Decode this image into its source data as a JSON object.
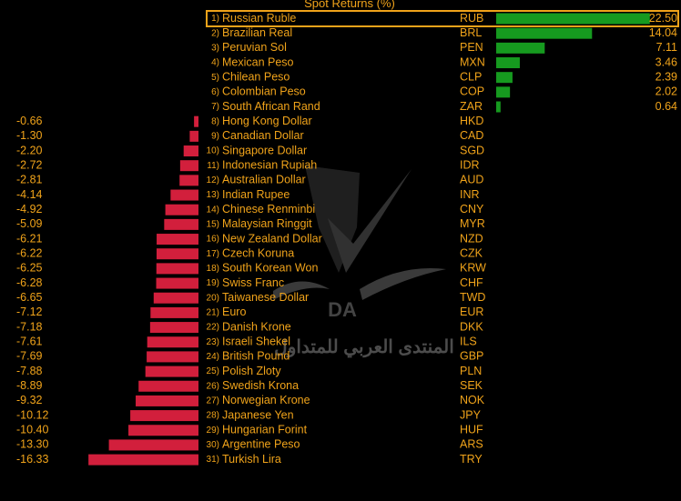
{
  "chart_data": {
    "type": "bar",
    "title": "Spot Returns (%)",
    "highlighted_rank": 1,
    "colors": {
      "background": "#000000",
      "text": "#f0a31a",
      "positive_bar": "#169a1f",
      "negative_bar": "#d21f3c",
      "highlight_border": "#f0a31a"
    },
    "rows": [
      {
        "rank": "1)",
        "name": "Russian Ruble",
        "code": "RUB",
        "value": 22.5
      },
      {
        "rank": "2)",
        "name": "Brazilian Real",
        "code": "BRL",
        "value": 14.04
      },
      {
        "rank": "3)",
        "name": "Peruvian Sol",
        "code": "PEN",
        "value": 7.11
      },
      {
        "rank": "4)",
        "name": "Mexican Peso",
        "code": "MXN",
        "value": 3.46
      },
      {
        "rank": "5)",
        "name": "Chilean Peso",
        "code": "CLP",
        "value": 2.39
      },
      {
        "rank": "6)",
        "name": "Colombian Peso",
        "code": "COP",
        "value": 2.02
      },
      {
        "rank": "7)",
        "name": "South African Rand",
        "code": "ZAR",
        "value": 0.64
      },
      {
        "rank": "8)",
        "name": "Hong Kong Dollar",
        "code": "HKD",
        "value": -0.66
      },
      {
        "rank": "9)",
        "name": "Canadian Dollar",
        "code": "CAD",
        "value": -1.3
      },
      {
        "rank": "10)",
        "name": "Singapore Dollar",
        "code": "SGD",
        "value": -2.2
      },
      {
        "rank": "11)",
        "name": "Indonesian Rupiah",
        "code": "IDR",
        "value": -2.72
      },
      {
        "rank": "12)",
        "name": "Australian Dollar",
        "code": "AUD",
        "value": -2.81
      },
      {
        "rank": "13)",
        "name": "Indian Rupee",
        "code": "INR",
        "value": -4.14
      },
      {
        "rank": "14)",
        "name": "Chinese Renminbi",
        "code": "CNY",
        "value": -4.92
      },
      {
        "rank": "15)",
        "name": "Malaysian Ringgit",
        "code": "MYR",
        "value": -5.09
      },
      {
        "rank": "16)",
        "name": "New Zealand Dollar",
        "code": "NZD",
        "value": -6.21
      },
      {
        "rank": "17)",
        "name": "Czech Koruna",
        "code": "CZK",
        "value": -6.22
      },
      {
        "rank": "18)",
        "name": "South Korean Won",
        "code": "KRW",
        "value": -6.25
      },
      {
        "rank": "19)",
        "name": "Swiss Franc",
        "code": "CHF",
        "value": -6.28
      },
      {
        "rank": "20)",
        "name": "Taiwanese Dollar",
        "code": "TWD",
        "value": -6.65
      },
      {
        "rank": "21)",
        "name": "Euro",
        "code": "EUR",
        "value": -7.12
      },
      {
        "rank": "22)",
        "name": "Danish Krone",
        "code": "DKK",
        "value": -7.18
      },
      {
        "rank": "23)",
        "name": "Israeli Shekel",
        "code": "ILS",
        "value": -7.61
      },
      {
        "rank": "24)",
        "name": "British Pound",
        "code": "GBP",
        "value": -7.69
      },
      {
        "rank": "25)",
        "name": "Polish Zloty",
        "code": "PLN",
        "value": -7.88
      },
      {
        "rank": "26)",
        "name": "Swedish Krona",
        "code": "SEK",
        "value": -8.89
      },
      {
        "rank": "27)",
        "name": "Norwegian Krone",
        "code": "NOK",
        "value": -9.32
      },
      {
        "rank": "28)",
        "name": "Japanese Yen",
        "code": "JPY",
        "value": -10.12
      },
      {
        "rank": "29)",
        "name": "Hungarian Forint",
        "code": "HUF",
        "value": -10.4
      },
      {
        "rank": "30)",
        "name": "Argentine Peso",
        "code": "ARS",
        "value": -13.3
      },
      {
        "rank": "31)",
        "name": "Turkish Lira",
        "code": "TRY",
        "value": -16.33
      }
    ]
  },
  "watermark": {
    "logo_letters": "DA",
    "arabic_text": "المنتدى العربي للمتداول"
  }
}
